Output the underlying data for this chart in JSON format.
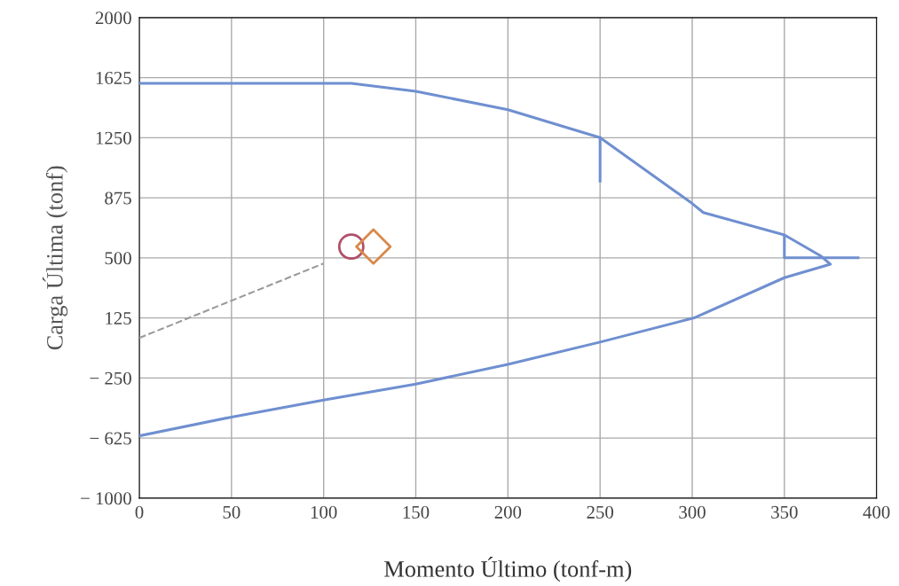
{
  "chart_data": {
    "type": "line",
    "xlabel": "Momento Último (tonf-m)",
    "ylabel": "Carga Última (tonf)",
    "xlim": [
      0,
      400
    ],
    "ylim": [
      -1000,
      2000
    ],
    "xticks": [
      0,
      50,
      100,
      150,
      200,
      250,
      300,
      350,
      400
    ],
    "yticks": [
      {
        "value": -1000,
        "label": "− 1000"
      },
      {
        "value": -625,
        "label": "− 625"
      },
      {
        "value": -250,
        "label": "− 250"
      },
      125,
      500,
      875,
      1250,
      1625,
      2000
    ],
    "grid": true,
    "legend": false,
    "series": [
      {
        "color": "#6f8fd0",
        "line_style": "solid",
        "marker": "none",
        "x": [
          0,
          115,
          150,
          200,
          250,
          300,
          306,
          350,
          370,
          375,
          350,
          301,
          250,
          200,
          150,
          100,
          50,
          0
        ],
        "values": [
          1590,
          1590,
          1540,
          1425,
          1250,
          839,
          783,
          643,
          510,
          460,
          376,
          125,
          -26,
          -165,
          -288,
          -388,
          -494,
          -611
        ]
      },
      {
        "color": "#9a9a9a",
        "line_style": "dashed",
        "marker": "none",
        "x": [
          0,
          100
        ],
        "values": [
          0,
          465
        ]
      },
      {
        "color": "#6f8fd0",
        "line_style": "solid",
        "marker": "none",
        "x": [
          250,
          250,
          null,
          350,
          350,
          390
        ],
        "values": [
          1250,
          980,
          null,
          640,
          500,
          500
        ]
      },
      {
        "type": "scatter",
        "color": "#b0506a",
        "marker": "circle",
        "x": [
          115
        ],
        "values": [
          570
        ]
      },
      {
        "type": "scatter",
        "color": "#d9894a",
        "marker": "diamond",
        "x": [
          127
        ],
        "values": [
          570
        ]
      }
    ]
  }
}
